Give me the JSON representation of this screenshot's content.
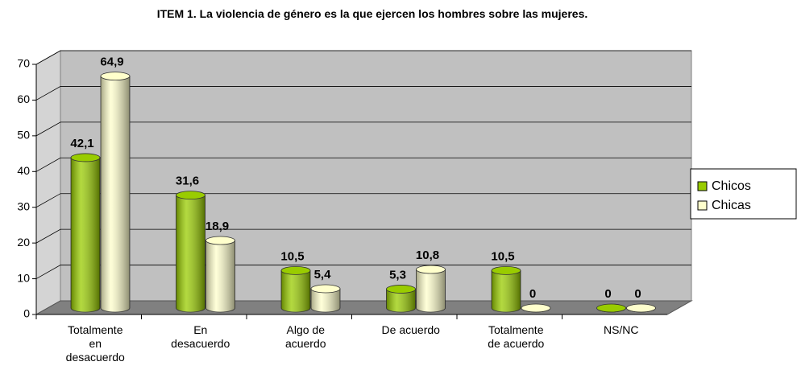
{
  "chart_data": {
    "type": "bar3d",
    "title": "ITEM 1. La violencia de género es la que ejercen los hombres sobre las mujeres.",
    "categories": [
      "Totalmente en desacuerdo",
      "En desacuerdo",
      "Algo de acuerdo",
      "De acuerdo",
      "Totalmente de acuerdo",
      "NS/NC"
    ],
    "series": [
      {
        "name": "Chicos",
        "color": "#99cc00",
        "values": [
          42.1,
          31.6,
          10.5,
          5.3,
          10.5,
          0
        ],
        "value_labels": [
          "42,1",
          "31,6",
          "10,5",
          "5,3",
          "10,5",
          "0"
        ]
      },
      {
        "name": "Chicas",
        "color": "#ffffcc",
        "values": [
          64.9,
          18.9,
          5.4,
          10.8,
          0,
          0
        ],
        "value_labels": [
          "64,9",
          "18,9",
          "5,4",
          "10,8",
          "0",
          "0"
        ]
      }
    ],
    "ylim": [
      0,
      70
    ],
    "yticks": [
      0,
      10,
      20,
      30,
      40,
      50,
      60,
      70
    ],
    "grid": true,
    "legend": "right"
  }
}
